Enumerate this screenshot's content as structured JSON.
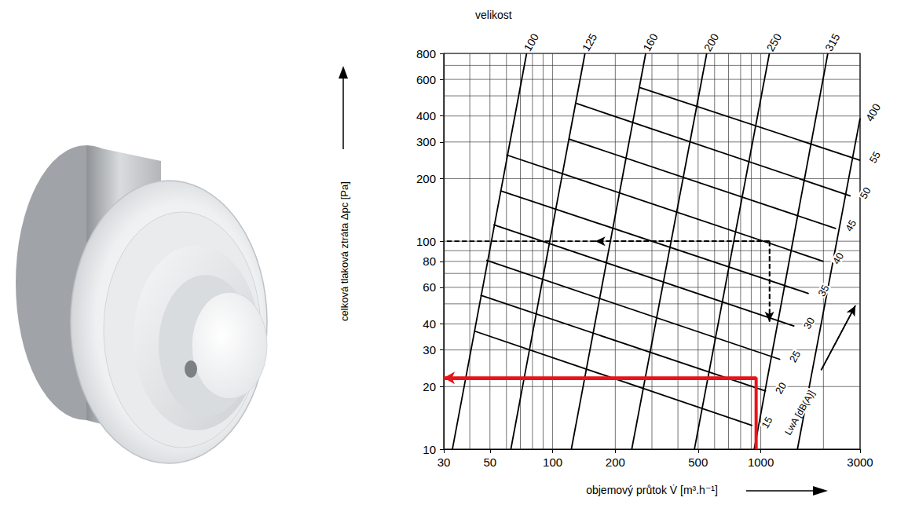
{
  "chart_data": {
    "type": "line",
    "x_label": "objemový průtok V̇ [m³.h⁻¹]",
    "y_label": "celková tlaková ztráta Δpc [Pa]",
    "log": true,
    "grid": true,
    "color": "#000000",
    "xlim": [
      30,
      3000
    ],
    "xticks": [
      30,
      50,
      100,
      200,
      500,
      1000,
      3000
    ],
    "ylim": [
      10,
      800
    ],
    "yticks": [
      10,
      20,
      30,
      40,
      60,
      80,
      100,
      200,
      300,
      400,
      600,
      800
    ],
    "size_title": "velikost",
    "size_lines": [
      {
        "name": "100",
        "x": [
          33,
          75
        ],
        "values": [
          10,
          800
        ]
      },
      {
        "name": "125",
        "x": [
          63,
          143
        ],
        "values": [
          10,
          800
        ]
      },
      {
        "name": "160",
        "x": [
          123,
          280
        ],
        "values": [
          10,
          800
        ]
      },
      {
        "name": "200",
        "x": [
          240,
          550
        ],
        "values": [
          10,
          800
        ]
      },
      {
        "name": "250",
        "x": [
          480,
          1100
        ],
        "values": [
          10,
          800
        ]
      },
      {
        "name": "315",
        "x": [
          930,
          2100
        ],
        "values": [
          10,
          800
        ]
      },
      {
        "name": "400",
        "x": [
          1500,
          3000
        ],
        "values": [
          10,
          390
        ]
      }
    ],
    "noise_title": "LwA [dB(A)]",
    "noise_lines": [
      {
        "name": "15",
        "x": [
          42,
          910
        ],
        "values": [
          37,
          13
        ]
      },
      {
        "name": "20",
        "x": [
          45,
          1060
        ],
        "values": [
          55,
          19
        ]
      },
      {
        "name": "25",
        "x": [
          48,
          1240
        ],
        "values": [
          81,
          27
        ]
      },
      {
        "name": "30",
        "x": [
          52,
          1450
        ],
        "values": [
          120,
          39
        ]
      },
      {
        "name": "35",
        "x": [
          56,
          1700
        ],
        "values": [
          175,
          56
        ]
      },
      {
        "name": "40",
        "x": [
          60,
          2000
        ],
        "values": [
          260,
          80
        ]
      },
      {
        "name": "45",
        "x": [
          120,
          2300
        ],
        "values": [
          310,
          115
        ]
      },
      {
        "name": "50",
        "x": [
          130,
          2700
        ],
        "values": [
          460,
          165
        ]
      },
      {
        "name": "55",
        "x": [
          260,
          3000
        ],
        "values": [
          550,
          245
        ]
      }
    ],
    "annotations": [
      {
        "type": "arrow",
        "line_style": "solid",
        "color": "#e8141b",
        "points": [
          [
            950,
            10
          ],
          [
            950,
            22
          ],
          [
            30,
            22
          ]
        ]
      },
      {
        "type": "arrow",
        "line_style": "dashed",
        "color": "#000000",
        "points": [
          [
            1100,
            100
          ],
          [
            160,
            100
          ]
        ]
      },
      {
        "type": "line",
        "line_style": "dashed",
        "color": "#000000",
        "points": [
          [
            160,
            100
          ],
          [
            30,
            100
          ]
        ]
      },
      {
        "type": "arrow",
        "line_style": "dashed",
        "color": "#000000",
        "points": [
          [
            1100,
            100
          ],
          [
            1100,
            41
          ]
        ]
      },
      {
        "type": "arrow",
        "line_style": "solid",
        "color": "#000000",
        "points": [
          [
            1950,
            24
          ],
          [
            2850,
            49
          ]
        ]
      }
    ]
  }
}
